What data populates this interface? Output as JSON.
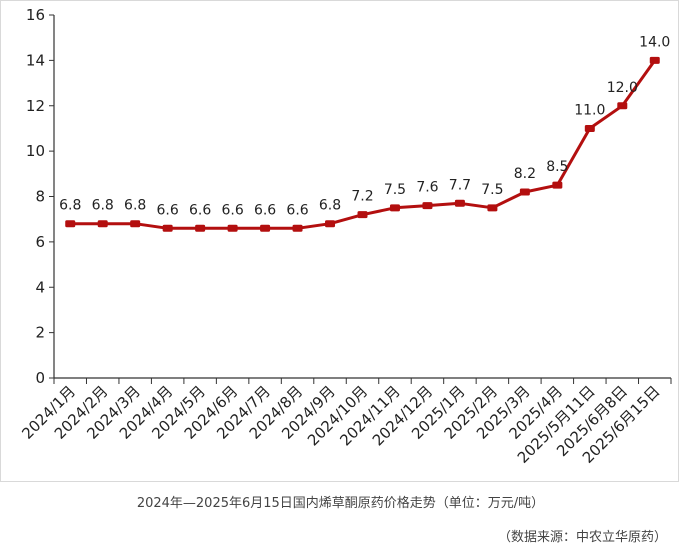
{
  "caption": "2024年—2025年6月15日国内烯草酮原药价格走势（单位：万元/吨）",
  "source": "（数据来源：中农立华原药）",
  "colors": {
    "line": "#b30f0f",
    "dropline": "#f3b49a",
    "axis": "#333333"
  },
  "chart_data": {
    "type": "line",
    "title": "",
    "xlabel": "",
    "ylabel": "",
    "ylim": [
      0,
      16
    ],
    "yticks": [
      0,
      2,
      4,
      6,
      8,
      10,
      12,
      14,
      16
    ],
    "grid": false,
    "categories": [
      "2024/1月",
      "2024/2月",
      "2024/3月",
      "2024/4月",
      "2024/5月",
      "2024/6月",
      "2024/7月",
      "2024/8月",
      "2024/9月",
      "2024/10月",
      "2024/11月",
      "2024/12月",
      "2025/1月",
      "2025/2月",
      "2025/3月",
      "2025/4月",
      "2025/5月11日",
      "2025/6月8日",
      "2025/6月15日"
    ],
    "series": [
      {
        "values": [
          6.8,
          6.8,
          6.8,
          6.6,
          6.6,
          6.6,
          6.6,
          6.6,
          6.8,
          7.2,
          7.5,
          7.6,
          7.7,
          7.5,
          8.2,
          8.5,
          11.0,
          12.0,
          14.0
        ],
        "labels": [
          "6.8",
          "6.8",
          "6.8",
          "6.6",
          "6.6",
          "6.6",
          "6.6",
          "6.6",
          "6.8",
          "7.2",
          "7.5",
          "7.6",
          "7.7",
          "7.5",
          "8.2",
          "8.5",
          "11.0",
          "12.0",
          "14.0"
        ]
      }
    ]
  }
}
